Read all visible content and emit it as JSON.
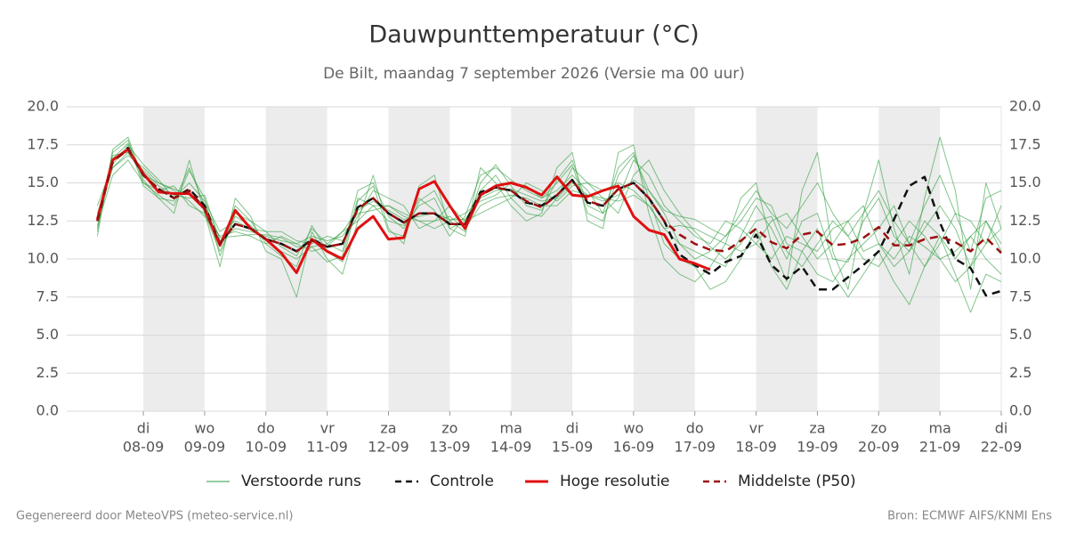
{
  "chart_data": {
    "type": "line",
    "title": "Dauwpunttemperatuur (°C)",
    "subtitle": "De Bilt, maandag  7 september 2026 (Versie ma 00 uur)",
    "footer_left": "Gegenereerd door MeteoVPS (meteo-service.nl)",
    "footer_right": "Bron: ECMWF AIFS/KNMI Ens",
    "xlim": [
      -0.25,
      15
    ],
    "ylim": [
      0,
      20
    ],
    "grid": true,
    "yticks": [
      {
        "value": 0,
        "label": "0.0"
      },
      2.5,
      {
        "value": 5,
        "label": "5.0"
      },
      7.5,
      {
        "value": 10,
        "label": "10.0"
      },
      12.5,
      {
        "value": 15,
        "label": "15.0"
      },
      17.5,
      {
        "value": 20,
        "label": "20.0"
      }
    ],
    "xticks": [
      {
        "value": 1,
        "label": "di",
        "date": "08-09"
      },
      {
        "value": 2,
        "label": "wo",
        "date": "09-09"
      },
      {
        "value": 3,
        "label": "do",
        "date": "10-09"
      },
      {
        "value": 4,
        "label": "vr",
        "date": "11-09"
      },
      {
        "value": 5,
        "label": "za",
        "date": "12-09"
      },
      {
        "value": 6,
        "label": "zo",
        "date": "13-09"
      },
      {
        "value": 7,
        "label": "ma",
        "date": "14-09"
      },
      {
        "value": 8,
        "label": "di",
        "date": "15-09"
      },
      {
        "value": 9,
        "label": "wo",
        "date": "16-09"
      },
      {
        "value": 10,
        "label": "do",
        "date": "17-09"
      },
      {
        "value": 11,
        "label": "vr",
        "date": "18-09"
      },
      {
        "value": 12,
        "label": "za",
        "date": "19-09"
      },
      {
        "value": 13,
        "label": "zo",
        "date": "20-09"
      },
      {
        "value": 14,
        "label": "ma",
        "date": "21-09"
      },
      {
        "value": 15,
        "label": "di",
        "date": "22-09"
      }
    ],
    "x": [
      0.25,
      0.5,
      0.75,
      1,
      1.25,
      1.5,
      1.75,
      2,
      2.25,
      2.5,
      2.75,
      3,
      3.25,
      3.5,
      3.75,
      4,
      4.25,
      4.5,
      4.75,
      5,
      5.25,
      5.5,
      5.75,
      6,
      6.25,
      6.5,
      6.75,
      7,
      7.25,
      7.5,
      7.75,
      8,
      8.25,
      8.5,
      8.75,
      9,
      9.25,
      9.5,
      9.75,
      10,
      10.25,
      10.5,
      10.75,
      11,
      11.25,
      11.5,
      11.75,
      12,
      12.25,
      12.5,
      12.75,
      13,
      13.25,
      13.5,
      13.75,
      14,
      14.25,
      14.5,
      14.75,
      15
    ],
    "ensemble": {
      "name": "Verstoorde runs",
      "color": "#2e9e3e",
      "runs": [
        [
          12.0,
          17.0,
          17.8,
          15.0,
          14.2,
          13.5,
          15.8,
          14.0,
          10.2,
          13.0,
          12.5,
          11.8,
          10.8,
          10.2,
          12.0,
          11.0,
          10.5,
          14.5,
          15.0,
          12.8,
          12.0,
          14.0,
          13.2,
          11.5,
          12.8,
          15.5,
          16.0,
          15.2,
          14.5,
          14.0,
          15.0,
          16.2,
          13.0,
          12.5,
          15.5,
          16.8,
          14.5,
          13.0,
          11.0,
          10.5,
          10.0,
          9.5,
          11.5,
          13.5,
          12.0,
          10.0,
          12.5,
          13.0,
          10.0,
          9.8,
          12.5,
          14.0,
          11.5,
          10.5,
          12.0,
          13.5,
          12.0,
          9.5,
          12.5,
          11.0
        ],
        [
          13.0,
          16.0,
          16.8,
          16.0,
          15.0,
          14.5,
          13.8,
          12.8,
          11.5,
          11.8,
          11.5,
          11.0,
          11.5,
          11.0,
          10.5,
          10.8,
          11.8,
          12.5,
          13.5,
          13.5,
          13.0,
          12.5,
          12.5,
          12.8,
          12.0,
          13.5,
          14.0,
          14.2,
          14.0,
          13.5,
          13.5,
          14.5,
          14.2,
          14.0,
          13.8,
          14.2,
          13.5,
          12.0,
          12.2,
          12.0,
          11.5,
          11.0,
          10.5,
          11.0,
          10.0,
          11.5,
          11.0,
          10.5,
          12.0,
          12.5,
          10.5,
          11.0,
          10.0,
          11.5,
          10.8,
          10.0,
          10.5,
          11.5,
          10.0,
          9.0
        ],
        [
          11.5,
          17.2,
          18.0,
          15.2,
          14.0,
          13.0,
          16.5,
          13.0,
          9.5,
          14.0,
          12.8,
          10.5,
          10.0,
          7.5,
          11.8,
          10.0,
          9.0,
          12.5,
          15.5,
          12.0,
          11.0,
          14.8,
          15.5,
          12.0,
          11.5,
          16.0,
          15.0,
          13.5,
          12.5,
          13.0,
          16.0,
          17.0,
          12.5,
          12.0,
          17.0,
          17.5,
          13.0,
          10.0,
          9.0,
          8.5,
          9.5,
          11.0,
          14.0,
          15.0,
          11.0,
          8.5,
          14.5,
          17.0,
          10.5,
          8.0,
          13.0,
          16.5,
          12.0,
          9.0,
          14.0,
          18.0,
          14.5,
          8.0,
          15.0,
          12.0
        ],
        [
          12.8,
          16.8,
          17.0,
          15.8,
          14.8,
          14.2,
          14.0,
          14.2,
          11.2,
          12.0,
          11.8,
          11.5,
          11.2,
          11.0,
          11.5,
          11.2,
          11.5,
          13.0,
          13.2,
          13.5,
          12.8,
          12.5,
          12.0,
          12.5,
          13.0,
          13.8,
          14.2,
          15.0,
          14.8,
          14.0,
          14.5,
          15.5,
          14.5,
          13.0,
          14.0,
          16.5,
          15.5,
          13.5,
          12.5,
          11.5,
          11.0,
          12.5,
          12.0,
          11.0,
          12.5,
          13.0,
          11.5,
          10.0,
          11.0,
          12.5,
          13.5,
          11.0,
          9.5,
          10.5,
          12.5,
          11.5,
          10.0,
          11.5,
          12.5,
          10.5
        ],
        [
          12.2,
          15.5,
          16.5,
          15.0,
          14.5,
          14.8,
          13.5,
          13.0,
          10.5,
          12.8,
          12.2,
          11.2,
          10.5,
          10.0,
          10.8,
          9.8,
          10.2,
          14.0,
          13.5,
          12.5,
          12.2,
          13.5,
          14.0,
          12.0,
          12.5,
          14.5,
          15.5,
          14.0,
          13.0,
          12.8,
          14.0,
          16.0,
          15.0,
          14.5,
          15.0,
          14.5,
          13.5,
          12.0,
          11.0,
          10.0,
          10.5,
          11.5,
          12.5,
          14.0,
          13.5,
          11.0,
          10.5,
          9.0,
          8.5,
          10.0,
          11.0,
          12.0,
          13.5,
          11.0,
          9.5,
          11.0,
          13.0,
          12.5,
          11.0,
          13.5
        ],
        [
          13.5,
          16.2,
          17.5,
          16.2,
          15.2,
          14.0,
          15.0,
          13.8,
          11.8,
          12.5,
          12.0,
          11.8,
          11.8,
          11.2,
          11.0,
          11.5,
          11.2,
          12.8,
          14.5,
          14.0,
          13.5,
          12.0,
          12.5,
          13.5,
          12.5,
          13.0,
          13.5,
          14.0,
          15.0,
          14.5,
          13.8,
          14.8,
          15.0,
          14.0,
          13.0,
          15.5,
          16.5,
          14.5,
          13.0,
          11.8,
          10.8,
          10.0,
          11.0,
          12.5,
          12.8,
          10.5,
          9.5,
          11.0,
          12.5,
          11.5,
          10.0,
          9.5,
          11.0,
          12.5,
          11.5,
          10.0,
          8.5,
          9.5,
          11.0,
          12.0
        ],
        [
          11.8,
          16.6,
          17.6,
          14.8,
          14.0,
          13.8,
          16.0,
          13.5,
          10.8,
          13.5,
          12.5,
          11.0,
          10.2,
          9.5,
          12.2,
          10.5,
          9.8,
          13.8,
          14.8,
          11.8,
          11.5,
          13.8,
          14.5,
          12.5,
          11.8,
          15.0,
          16.2,
          14.8,
          13.5,
          13.2,
          15.2,
          16.5,
          13.5,
          13.0,
          16.0,
          17.0,
          14.0,
          11.0,
          10.0,
          9.5,
          8.0,
          8.5,
          10.0,
          12.0,
          9.5,
          8.0,
          10.5,
          12.0,
          9.0,
          7.5,
          9.0,
          10.5,
          8.5,
          7.0,
          9.5,
          11.5,
          9.0,
          6.5,
          9.0,
          8.5
        ],
        [
          12.6,
          16.0,
          17.0,
          15.5,
          15.0,
          14.6,
          14.2,
          13.6,
          11.4,
          11.5,
          11.6,
          11.6,
          11.4,
          10.8,
          10.8,
          11.0,
          11.8,
          13.2,
          13.8,
          13.2,
          12.6,
          12.8,
          13.0,
          12.6,
          12.6,
          14.0,
          14.5,
          14.6,
          14.2,
          13.8,
          14.0,
          15.0,
          14.2,
          13.8,
          14.2,
          15.2,
          14.5,
          13.2,
          12.8,
          12.6,
          12.0,
          11.5,
          13.0,
          14.5,
          13.0,
          12.0,
          13.5,
          15.0,
          13.0,
          11.5,
          13.0,
          14.5,
          12.5,
          11.0,
          13.5,
          15.5,
          13.0,
          10.5,
          14.0,
          14.5
        ]
      ]
    },
    "series": [
      {
        "name": "Controle",
        "color": "#111111",
        "dash": "dashed",
        "values": [
          12.5,
          16.4,
          17.3,
          15.5,
          14.6,
          14.0,
          14.6,
          13.5,
          11.0,
          12.3,
          12.0,
          11.3,
          11.0,
          10.5,
          11.3,
          10.8,
          11.0,
          13.4,
          14.0,
          13.0,
          12.4,
          13.0,
          13.0,
          12.3,
          12.3,
          14.4,
          14.7,
          14.5,
          13.7,
          13.5,
          14.2,
          15.2,
          13.7,
          13.5,
          14.6,
          15.0,
          14.0,
          12.5,
          10.3,
          9.6,
          9.0,
          9.8,
          10.2,
          11.6,
          9.6,
          8.7,
          9.5,
          8.0,
          8.0,
          8.8,
          9.6,
          10.5,
          12.6,
          14.8,
          15.4,
          12.4,
          10.0,
          9.4,
          7.6,
          7.9
        ]
      },
      {
        "name": "Hoge resolutie",
        "color": "#e01010",
        "dash": "solid",
        "values": [
          12.6,
          16.5,
          17.2,
          15.6,
          14.4,
          14.3,
          14.3,
          13.3,
          10.9,
          13.2,
          12.0,
          11.3,
          10.4,
          9.1,
          11.3,
          10.5,
          10.0,
          12.0,
          12.8,
          11.3,
          11.4,
          14.6,
          15.1,
          13.5,
          12.0,
          14.2,
          14.8,
          15.0,
          14.7,
          14.2,
          15.4,
          14.2,
          14.1,
          14.5,
          14.8,
          12.8,
          11.9,
          11.6,
          10.0,
          9.7,
          9.3,
          null,
          null,
          null,
          null,
          null,
          null,
          null,
          null,
          null,
          null,
          null,
          null,
          null,
          null,
          null,
          null,
          null,
          null,
          null
        ]
      },
      {
        "name": "Middelste (P50)",
        "color": "#9b1010",
        "dash": "dashed",
        "values": [
          12.5,
          16.4,
          17.2,
          15.5,
          14.6,
          14.0,
          14.5,
          13.3,
          11.0,
          12.3,
          12.0,
          11.3,
          11.0,
          10.5,
          11.2,
          10.8,
          11.0,
          13.3,
          14.0,
          13.0,
          12.4,
          13.0,
          13.0,
          12.3,
          12.3,
          14.2,
          14.7,
          14.5,
          13.8,
          13.4,
          14.2,
          15.2,
          13.8,
          13.5,
          14.6,
          15.0,
          14.0,
          12.5,
          11.6,
          11.0,
          10.6,
          10.5,
          11.2,
          12.0,
          11.1,
          10.7,
          11.6,
          11.8,
          10.9,
          11.0,
          11.4,
          12.1,
          10.9,
          10.9,
          11.3,
          11.5,
          11.1,
          10.5,
          11.4,
          10.4
        ]
      }
    ]
  }
}
